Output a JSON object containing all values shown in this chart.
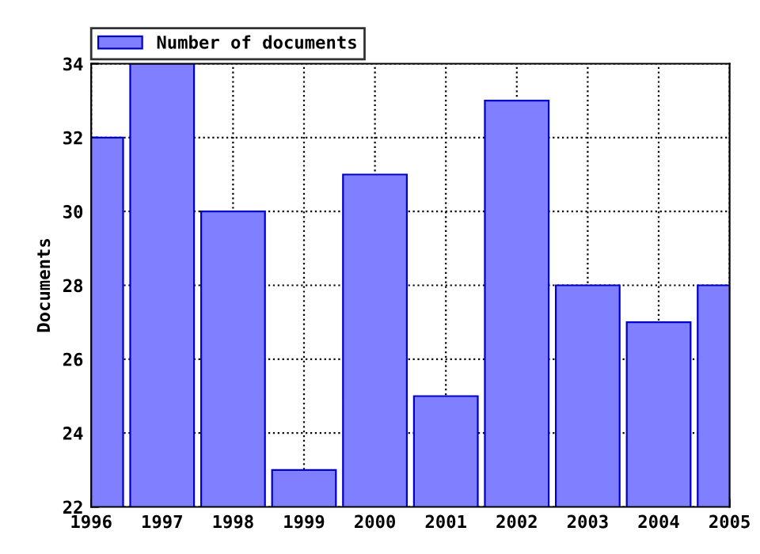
{
  "chart_data": {
    "type": "bar",
    "ylabel": "Documents",
    "x": [
      1996,
      1997,
      1998,
      1999,
      2000,
      2001,
      2002,
      2003,
      2004,
      2005
    ],
    "series": [
      {
        "name": "Number of documents",
        "color": "#7f7fff",
        "values": [
          32,
          34,
          30,
          23,
          31,
          25,
          33,
          28,
          27,
          28
        ]
      }
    ],
    "xlim": [
      1996,
      2005
    ],
    "xticks": [
      1996,
      1997,
      1998,
      1999,
      2000,
      2001,
      2002,
      2003,
      2004,
      2005
    ],
    "ylim": [
      22,
      34
    ],
    "yticks": [
      22,
      24,
      26,
      28,
      30,
      32,
      34
    ],
    "grid": true,
    "legend": "top"
  }
}
